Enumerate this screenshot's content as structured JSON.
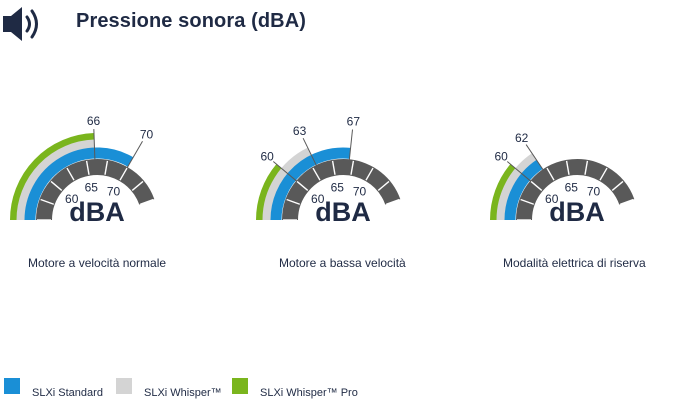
{
  "title": "Pressione sonora (dBA)",
  "header_icon": "speaker-volume-icon",
  "unit_label": "dBA",
  "colors": {
    "standard": "#1a8fd6",
    "whisper": "#d4d4d4",
    "whisper_pro": "#7ab51d",
    "dial": "#595959",
    "text": "#1f2a44"
  },
  "legend": [
    {
      "label": "SLXi Standard",
      "color": "#1a8fd6"
    },
    {
      "label": "SLXi Whisper™",
      "color": "#d4d4d4"
    },
    {
      "label": "SLXi Whisper™ Pro",
      "color": "#7ab51d"
    }
  ],
  "chart_data": [
    {
      "type": "gauge",
      "title": "Motore a velocità normale",
      "scale_ticks": [
        60,
        65,
        70
      ],
      "range": [
        55,
        75
      ],
      "series": [
        {
          "name": "SLXi Standard",
          "value": 70,
          "label": "70"
        },
        {
          "name": "SLXi Whisper™",
          "value": 66,
          "label": "66"
        },
        {
          "name": "SLXi Whisper™ Pro",
          "value": 66,
          "label": ""
        }
      ]
    },
    {
      "type": "gauge",
      "title": "Motore a bassa velocità",
      "scale_ticks": [
        60,
        65,
        70
      ],
      "range": [
        55,
        75
      ],
      "series": [
        {
          "name": "SLXi Standard",
          "value": 67,
          "label": "67"
        },
        {
          "name": "SLXi Whisper™",
          "value": 63,
          "label": "63"
        },
        {
          "name": "SLXi Whisper™ Pro",
          "value": 60,
          "label": "60"
        }
      ]
    },
    {
      "type": "gauge",
      "title": "Modalità elettrica di riserva",
      "scale_ticks": [
        60,
        65,
        70
      ],
      "range": [
        55,
        75
      ],
      "series": [
        {
          "name": "SLXi Standard",
          "value": 62,
          "label": "62"
        },
        {
          "name": "SLXi Whisper™",
          "value": 62,
          "label": ""
        },
        {
          "name": "SLXi Whisper™ Pro",
          "value": 60,
          "label": "60"
        }
      ]
    }
  ]
}
